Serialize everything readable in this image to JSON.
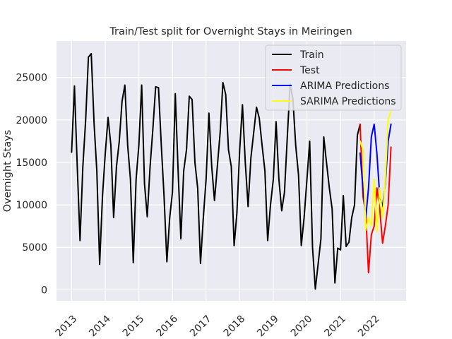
{
  "chart_data": {
    "type": "line",
    "title": "Train/Test split for Overnight Stays in Meiringen",
    "xlabel": "",
    "ylabel": "Overnight Stays",
    "xlim": [
      2012.55,
      2022.95
    ],
    "ylim": [
      -1300,
      29300
    ],
    "x_ticks": [
      2013,
      2014,
      2015,
      2016,
      2017,
      2018,
      2019,
      2020,
      2021,
      2022
    ],
    "x_tick_labels": [
      "2013",
      "2014",
      "2015",
      "2016",
      "2017",
      "2018",
      "2019",
      "2020",
      "2021",
      "2022"
    ],
    "y_ticks": [
      0,
      5000,
      10000,
      15000,
      20000,
      25000
    ],
    "y_tick_labels": [
      "0",
      "5000",
      "10000",
      "15000",
      "20000",
      "25000"
    ],
    "grid": true,
    "legend_position": "top-right",
    "series": [
      {
        "name": "Train",
        "color": "#000000",
        "x": [
          2013.0,
          2013.083,
          2013.167,
          2013.25,
          2013.333,
          2013.417,
          2013.5,
          2013.583,
          2013.667,
          2013.75,
          2013.833,
          2013.917,
          2014.0,
          2014.083,
          2014.167,
          2014.25,
          2014.333,
          2014.417,
          2014.5,
          2014.583,
          2014.667,
          2014.75,
          2014.833,
          2014.917,
          2015.0,
          2015.083,
          2015.167,
          2015.25,
          2015.333,
          2015.417,
          2015.5,
          2015.583,
          2015.667,
          2015.75,
          2015.833,
          2015.917,
          2016.0,
          2016.083,
          2016.167,
          2016.25,
          2016.333,
          2016.417,
          2016.5,
          2016.583,
          2016.667,
          2016.75,
          2016.833,
          2016.917,
          2017.0,
          2017.083,
          2017.167,
          2017.25,
          2017.333,
          2017.417,
          2017.5,
          2017.583,
          2017.667,
          2017.75,
          2017.833,
          2017.917,
          2018.0,
          2018.083,
          2018.167,
          2018.25,
          2018.333,
          2018.417,
          2018.5,
          2018.583,
          2018.667,
          2018.75,
          2018.833,
          2018.917,
          2019.0,
          2019.083,
          2019.167,
          2019.25,
          2019.333,
          2019.417,
          2019.5,
          2019.583,
          2019.667,
          2019.75,
          2019.833,
          2019.917,
          2020.0,
          2020.083,
          2020.167,
          2020.25,
          2020.333,
          2020.417,
          2020.5,
          2020.583,
          2020.667,
          2020.75,
          2020.833,
          2020.917,
          2021.0,
          2021.083,
          2021.167,
          2021.25,
          2021.333,
          2021.417,
          2021.5,
          2021.583
        ],
        "values": [
          16200,
          24000,
          14500,
          5800,
          14500,
          20000,
          27400,
          27800,
          19600,
          14000,
          3000,
          11000,
          16000,
          20300,
          17000,
          8500,
          14500,
          17500,
          22200,
          24100,
          17000,
          13000,
          3200,
          13000,
          17000,
          24100,
          12500,
          8600,
          14500,
          19000,
          23900,
          23800,
          17000,
          11000,
          3300,
          8500,
          11500,
          23100,
          14000,
          6000,
          14000,
          16500,
          22800,
          22400,
          15000,
          12000,
          3100,
          8500,
          13000,
          20800,
          14500,
          10500,
          14500,
          18500,
          24400,
          23000,
          16500,
          14500,
          5200,
          9000,
          16500,
          21800,
          15000,
          9800,
          15500,
          18500,
          21500,
          20200,
          17000,
          14000,
          5800,
          10000,
          13000,
          19800,
          13000,
          9300,
          11500,
          18000,
          24200,
          22500,
          17000,
          13500,
          5200,
          8500,
          13000,
          17500,
          5000,
          100,
          3000,
          6000,
          18000,
          15000,
          12000,
          9500,
          800,
          4900,
          4700,
          11100,
          5100,
          5600,
          8500,
          10000,
          18200,
          19500
        ]
      },
      {
        "name": "Test",
        "color": "#ff0000",
        "x": [
          2021.583,
          2021.667,
          2021.75,
          2021.833,
          2021.917,
          2022.0,
          2022.083,
          2022.167,
          2022.25,
          2022.333,
          2022.417,
          2022.5
        ],
        "values": [
          19500,
          11000,
          9000,
          2000,
          6500,
          7500,
          12000,
          9500,
          5500,
          7500,
          10000,
          16800
        ]
      },
      {
        "name": "ARIMA Predictions",
        "color": "#0000ff",
        "x": [
          2021.583,
          2021.667,
          2021.75,
          2021.833,
          2021.917,
          2022.0,
          2022.083,
          2022.167,
          2022.25,
          2022.333,
          2022.417,
          2022.5
        ],
        "values": [
          16100,
          12000,
          8500,
          12000,
          18000,
          19500,
          16000,
          11000,
          9800,
          12500,
          17500,
          19500
        ]
      },
      {
        "name": "SARIMA Predictions",
        "color": "#ffff00",
        "x": [
          2021.583,
          2021.667,
          2021.75,
          2021.833,
          2021.917,
          2022.0,
          2022.083,
          2022.167,
          2022.25,
          2022.333,
          2022.417,
          2022.5
        ],
        "values": [
          17500,
          16500,
          7000,
          8500,
          7500,
          13000,
          6800,
          12000,
          8500,
          13000,
          20000,
          21000
        ]
      }
    ]
  }
}
